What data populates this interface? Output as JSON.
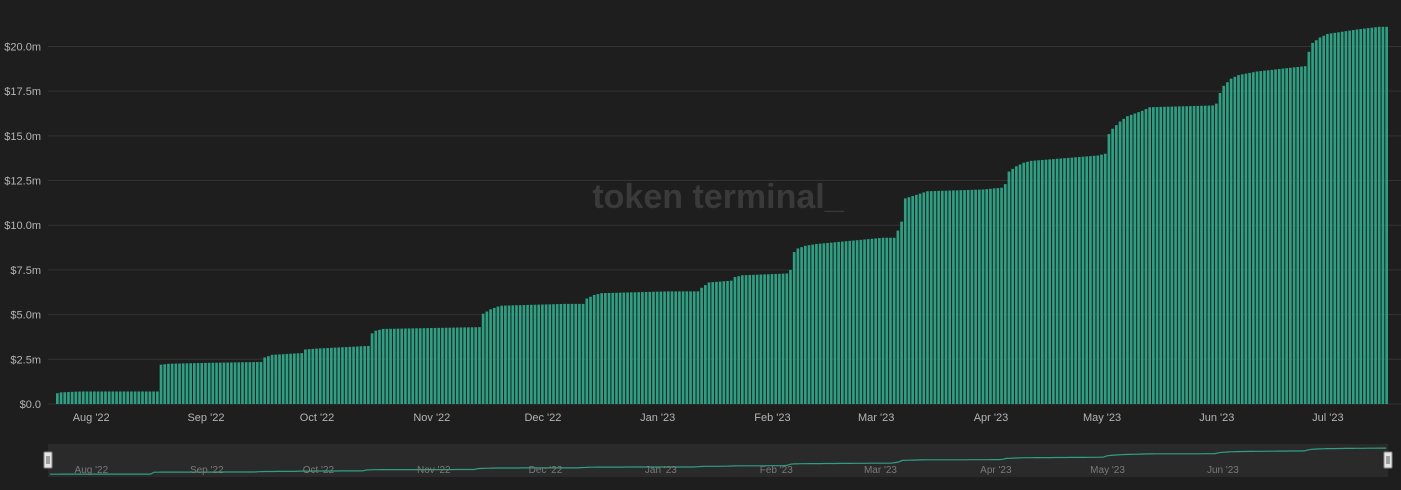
{
  "watermark": "token terminal_",
  "colors": {
    "background": "#1e1e1e",
    "bar": "#2e9f83",
    "grid": "#333333",
    "tick_text": "#b4b4b4",
    "watermark": "#3a3a3a",
    "navigator_bg": "#2a2a2a",
    "navigator_line": "#2e9f83",
    "navigator_text": "#7a7a7a"
  },
  "chart_data": {
    "type": "bar",
    "title": "",
    "xlabel": "",
    "ylabel": "",
    "cumulative": true,
    "ylim": [
      0,
      21.2
    ],
    "yticks": [
      {
        "value": 0,
        "label": "$0.0"
      },
      {
        "value": 2.5,
        "label": "$2.5m"
      },
      {
        "value": 5,
        "label": "$5.0m"
      },
      {
        "value": 7.5,
        "label": "$7.5m"
      },
      {
        "value": 10,
        "label": "$10.0m"
      },
      {
        "value": 12.5,
        "label": "$12.5m"
      },
      {
        "value": 15,
        "label": "$15.0m"
      },
      {
        "value": 17.5,
        "label": "$17.5m"
      },
      {
        "value": 20,
        "label": "$20.0m"
      }
    ],
    "xticks": [
      {
        "label": "Aug '22",
        "index": 9
      },
      {
        "label": "Sep '22",
        "index": 40
      },
      {
        "label": "Oct '22",
        "index": 70
      },
      {
        "label": "Nov '22",
        "index": 101
      },
      {
        "label": "Dec '22",
        "index": 131
      },
      {
        "label": "Jan '23",
        "index": 162
      },
      {
        "label": "Feb '23",
        "index": 193
      },
      {
        "label": "Mar '23",
        "index": 221
      },
      {
        "label": "Apr '23",
        "index": 252
      },
      {
        "label": "May '23",
        "index": 282
      },
      {
        "label": "Jun '23",
        "index": 313
      },
      {
        "label": "Jul '23",
        "index": 343
      }
    ],
    "start_date": "2022-07-23",
    "grid": true,
    "legend": "none",
    "keyframes": [
      [
        0,
        0.6
      ],
      [
        1,
        0.65
      ],
      [
        6,
        0.7
      ],
      [
        27,
        0.7
      ],
      [
        28,
        2.2
      ],
      [
        30,
        2.25
      ],
      [
        40,
        2.3
      ],
      [
        55,
        2.35
      ],
      [
        56,
        2.6
      ],
      [
        58,
        2.75
      ],
      [
        66,
        2.85
      ],
      [
        67,
        3.05
      ],
      [
        70,
        3.1
      ],
      [
        84,
        3.25
      ],
      [
        85,
        3.95
      ],
      [
        86,
        4.1
      ],
      [
        88,
        4.2
      ],
      [
        114,
        4.3
      ],
      [
        115,
        5.05
      ],
      [
        117,
        5.3
      ],
      [
        119,
        5.45
      ],
      [
        120,
        5.5
      ],
      [
        137,
        5.6
      ],
      [
        142,
        5.6
      ],
      [
        143,
        5.9
      ],
      [
        145,
        6.1
      ],
      [
        147,
        6.2
      ],
      [
        165,
        6.3
      ],
      [
        173,
        6.3
      ],
      [
        174,
        6.5
      ],
      [
        176,
        6.8
      ],
      [
        182,
        6.9
      ],
      [
        183,
        7.1
      ],
      [
        185,
        7.2
      ],
      [
        197,
        7.3
      ],
      [
        198,
        7.5
      ],
      [
        199,
        8.5
      ],
      [
        200,
        8.7
      ],
      [
        202,
        8.85
      ],
      [
        205,
        8.95
      ],
      [
        223,
        9.3
      ],
      [
        226,
        9.3
      ],
      [
        227,
        9.7
      ],
      [
        228,
        10.2
      ],
      [
        229,
        11.5
      ],
      [
        232,
        11.7
      ],
      [
        235,
        11.9
      ],
      [
        250,
        12.0
      ],
      [
        255,
        12.1
      ],
      [
        256,
        12.3
      ],
      [
        257,
        13.0
      ],
      [
        259,
        13.3
      ],
      [
        261,
        13.5
      ],
      [
        263,
        13.6
      ],
      [
        281,
        13.9
      ],
      [
        283,
        14.0
      ],
      [
        284,
        15.1
      ],
      [
        285,
        15.4
      ],
      [
        287,
        15.8
      ],
      [
        289,
        16.1
      ],
      [
        293,
        16.4
      ],
      [
        295,
        16.6
      ],
      [
        312,
        16.7
      ],
      [
        313,
        16.8
      ],
      [
        314,
        17.4
      ],
      [
        315,
        17.8
      ],
      [
        317,
        18.2
      ],
      [
        319,
        18.4
      ],
      [
        324,
        18.6
      ],
      [
        337,
        18.9
      ],
      [
        338,
        19.7
      ],
      [
        339,
        20.2
      ],
      [
        341,
        20.5
      ],
      [
        343,
        20.7
      ],
      [
        351,
        20.95
      ],
      [
        357,
        21.1
      ],
      [
        359,
        21.1
      ]
    ]
  },
  "navigator": {
    "labels": [
      "Aug '22",
      "Sep '22",
      "Oct '22",
      "Nov '22",
      "Dec '22",
      "Jan '23",
      "Feb '23",
      "Mar '23",
      "Apr '23",
      "May '23",
      "Jun '23"
    ],
    "left_handle": "range-start-handle",
    "right_handle": "range-end-handle"
  }
}
